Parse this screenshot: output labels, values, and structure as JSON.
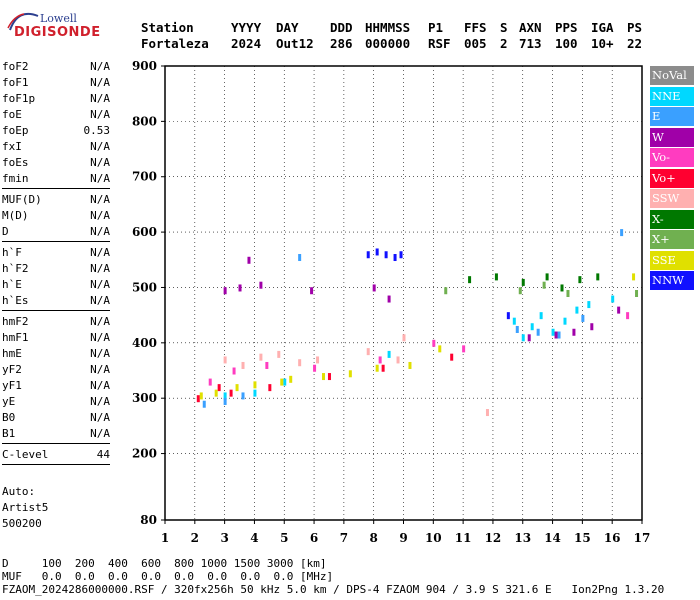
{
  "logo": {
    "line1": "Lowell",
    "line2": "DIGISONDE"
  },
  "header": {
    "labels": [
      "Station",
      "YYYY",
      "DAY",
      "DDD",
      "HHMMSS",
      "P1",
      "FFS",
      "S",
      "AXN",
      "PPS",
      "IGA",
      "PS"
    ],
    "values": [
      "Fortaleza",
      "2024",
      "Out12",
      "286",
      "000000",
      "RSF",
      "005",
      "2",
      "713",
      "100",
      "10+",
      "22"
    ]
  },
  "params": [
    {
      "name": "foF2",
      "value": "N/A"
    },
    {
      "name": "foF1",
      "value": "N/A"
    },
    {
      "name": "foF1p",
      "value": "N/A"
    },
    {
      "name": "foE",
      "value": "N/A"
    },
    {
      "name": "foEp",
      "value": "0.53"
    },
    {
      "name": "fxI",
      "value": "N/A"
    },
    {
      "name": "foEs",
      "value": "N/A"
    },
    {
      "name": "fmin",
      "value": "N/A"
    },
    {
      "name": "MUF(D)",
      "value": "N/A"
    },
    {
      "name": "M(D)",
      "value": "N/A"
    },
    {
      "name": "D",
      "value": "N/A"
    },
    {
      "name": "h`F",
      "value": "N/A"
    },
    {
      "name": "h`F2",
      "value": "N/A"
    },
    {
      "name": "h`E",
      "value": "N/A"
    },
    {
      "name": "h`Es",
      "value": "N/A"
    },
    {
      "name": "hmF2",
      "value": "N/A"
    },
    {
      "name": "hmF1",
      "value": "N/A"
    },
    {
      "name": "hmE",
      "value": "N/A"
    },
    {
      "name": "yF2",
      "value": "N/A"
    },
    {
      "name": "yF1",
      "value": "N/A"
    },
    {
      "name": "yE",
      "value": "N/A"
    },
    {
      "name": "B0",
      "value": "N/A"
    },
    {
      "name": "B1",
      "value": "N/A"
    },
    {
      "name": "C-level",
      "value": "44"
    }
  ],
  "auto": {
    "line1": "Auto:",
    "line2": "Artist5",
    "line3": "500200"
  },
  "footer": {
    "d_row": "D     100  200  400  600  800 1000 1500 3000 [km]",
    "muf_row": "MUF   0.0  0.0  0.0  0.0  0.0  0.0  0.0  0.0 [MHz]",
    "file_row": "FZAOM_2024286000000.RSF / 320fx256h 50 kHz 5.0 km / DPS-4 FZAOM 904 / 3.9 S 321.6 E   Ion2Png 1.3.20"
  },
  "legend": [
    {
      "label": "NoVal",
      "color": "#8c8c8c"
    },
    {
      "label": "NNE",
      "color": "#00d8ff"
    },
    {
      "label": "E",
      "color": "#3aa0ff"
    },
    {
      "label": "W",
      "color": "#a000a8"
    },
    {
      "label": "Vo-",
      "color": "#ff3cc0"
    },
    {
      "label": "Vo+",
      "color": "#ff0030"
    },
    {
      "label": "SSW",
      "color": "#ffb0b0"
    },
    {
      "label": "X-",
      "color": "#007800"
    },
    {
      "label": "X+",
      "color": "#70b050"
    },
    {
      "label": "SSE",
      "color": "#e0e000"
    },
    {
      "label": "NNW",
      "color": "#1010ff"
    }
  ],
  "chart_data": {
    "type": "scatter",
    "xlim": [
      1,
      17
    ],
    "ylim": [
      80,
      900
    ],
    "xticks": [
      "1",
      "2",
      "3",
      "4",
      "5",
      "6",
      "7",
      "8",
      "9",
      "10",
      "11",
      "12",
      "13",
      "14",
      "15",
      "16",
      "17"
    ],
    "yticks": [
      "80",
      "200",
      "300",
      "400",
      "500",
      "600",
      "700",
      "800",
      "900"
    ],
    "grid": true,
    "series": [
      {
        "name": "NNE",
        "color": "#00d8ff",
        "points": [
          [
            12.7,
            440
          ],
          [
            13.0,
            410
          ],
          [
            13.3,
            430
          ],
          [
            13.6,
            450
          ],
          [
            14.0,
            420
          ],
          [
            14.4,
            440
          ],
          [
            14.8,
            460
          ],
          [
            15.2,
            470
          ],
          [
            16.0,
            480
          ],
          [
            3.0,
            305
          ],
          [
            4.0,
            310
          ],
          [
            5.0,
            330
          ],
          [
            8.5,
            380
          ]
        ]
      },
      {
        "name": "E",
        "color": "#3aa0ff",
        "points": [
          [
            2.3,
            290
          ],
          [
            3.0,
            295
          ],
          [
            3.6,
            305
          ],
          [
            12.8,
            425
          ],
          [
            13.5,
            420
          ],
          [
            14.2,
            415
          ],
          [
            15.0,
            445
          ],
          [
            5.5,
            555
          ],
          [
            16.3,
            600
          ]
        ]
      },
      {
        "name": "W",
        "color": "#a000a8",
        "points": [
          [
            3.0,
            495
          ],
          [
            3.5,
            500
          ],
          [
            4.2,
            505
          ],
          [
            5.9,
            495
          ],
          [
            8.0,
            500
          ],
          [
            8.5,
            480
          ],
          [
            13.2,
            410
          ],
          [
            14.1,
            415
          ],
          [
            14.7,
            420
          ],
          [
            15.3,
            430
          ],
          [
            16.2,
            460
          ],
          [
            3.8,
            550
          ]
        ]
      },
      {
        "name": "Vo-",
        "color": "#ff3cc0",
        "points": [
          [
            2.5,
            330
          ],
          [
            3.3,
            350
          ],
          [
            4.4,
            360
          ],
          [
            6.0,
            355
          ],
          [
            8.2,
            370
          ],
          [
            10.0,
            400
          ],
          [
            11.0,
            390
          ],
          [
            16.5,
            450
          ]
        ]
      },
      {
        "name": "Vo+",
        "color": "#ff0030",
        "points": [
          [
            2.1,
            300
          ],
          [
            2.8,
            320
          ],
          [
            3.2,
            310
          ],
          [
            4.5,
            320
          ],
          [
            6.5,
            340
          ],
          [
            8.3,
            355
          ],
          [
            10.6,
            375
          ]
        ]
      },
      {
        "name": "SSW",
        "color": "#ffb0b0",
        "points": [
          [
            3.0,
            370
          ],
          [
            3.6,
            360
          ],
          [
            4.2,
            375
          ],
          [
            4.8,
            380
          ],
          [
            5.5,
            365
          ],
          [
            6.1,
            370
          ],
          [
            7.8,
            385
          ],
          [
            8.8,
            370
          ],
          [
            9.0,
            410
          ],
          [
            11.8,
            275
          ]
        ]
      },
      {
        "name": "X-",
        "color": "#007800",
        "points": [
          [
            13.0,
            510
          ],
          [
            13.8,
            520
          ],
          [
            14.3,
            500
          ],
          [
            14.9,
            515
          ],
          [
            15.5,
            520
          ],
          [
            11.2,
            515
          ],
          [
            12.1,
            520
          ]
        ]
      },
      {
        "name": "X+",
        "color": "#70b050",
        "points": [
          [
            12.9,
            495
          ],
          [
            13.7,
            505
          ],
          [
            14.5,
            490
          ],
          [
            16.8,
            490
          ],
          [
            10.4,
            495
          ]
        ]
      },
      {
        "name": "SSE",
        "color": "#e0e000",
        "points": [
          [
            2.2,
            305
          ],
          [
            2.7,
            310
          ],
          [
            3.4,
            320
          ],
          [
            4.0,
            325
          ],
          [
            4.9,
            330
          ],
          [
            5.2,
            335
          ],
          [
            6.3,
            340
          ],
          [
            7.2,
            345
          ],
          [
            8.1,
            355
          ],
          [
            9.2,
            360
          ],
          [
            10.2,
            390
          ],
          [
            16.7,
            520
          ]
        ]
      },
      {
        "name": "NNW",
        "color": "#1010ff",
        "points": [
          [
            7.8,
            560
          ],
          [
            8.1,
            565
          ],
          [
            8.4,
            560
          ],
          [
            8.7,
            555
          ],
          [
            8.9,
            560
          ],
          [
            12.5,
            450
          ]
        ]
      }
    ]
  }
}
